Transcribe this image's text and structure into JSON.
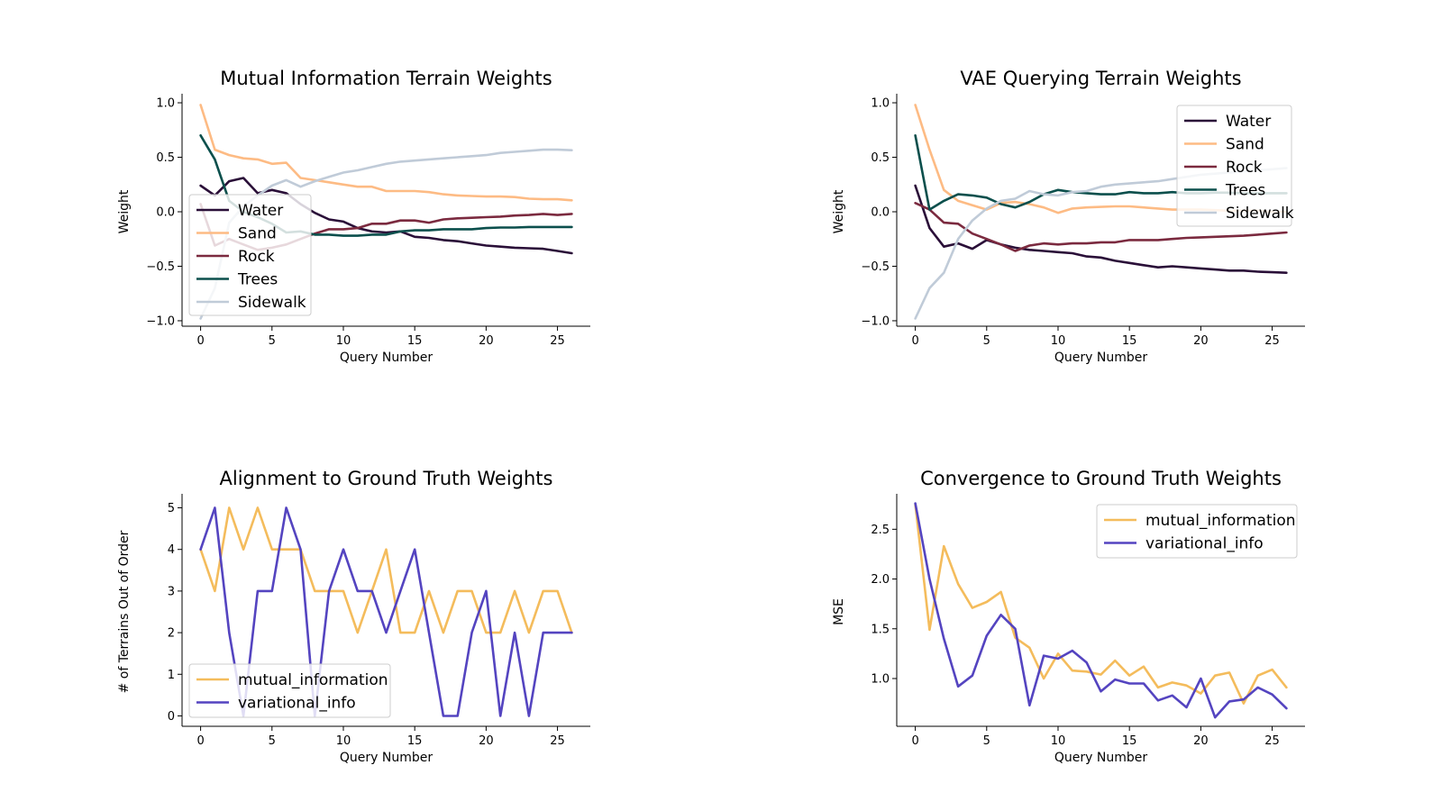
{
  "figure": {
    "panels": [
      "mi_weights",
      "vae_weights",
      "alignment",
      "convergence"
    ]
  },
  "chart_data": [
    {
      "id": "mi_weights",
      "type": "line",
      "title": "Mutual Information Terrain Weights",
      "xlabel": "Query Number",
      "ylabel": "Weight",
      "xlim": [
        -1.3,
        27.3
      ],
      "ylim": [
        -1.05,
        1.05
      ],
      "xticks": [
        0,
        5,
        10,
        15,
        20,
        25
      ],
      "yticks": [
        -1.0,
        -0.5,
        0.0,
        0.5,
        1.0
      ],
      "ytick_labels": [
        "−1.0",
        "−0.5",
        "0.0",
        "0.5",
        "1.0"
      ],
      "legend_position": "center-left",
      "grid": false,
      "x": [
        0,
        1,
        2,
        3,
        4,
        5,
        6,
        7,
        8,
        9,
        10,
        11,
        12,
        13,
        14,
        15,
        16,
        17,
        18,
        19,
        20,
        21,
        22,
        23,
        24,
        25,
        26
      ],
      "series": [
        {
          "name": "Water",
          "color": "#2a0f38",
          "values": [
            0.24,
            0.15,
            0.28,
            0.31,
            0.17,
            0.2,
            0.17,
            0.07,
            -0.01,
            -0.07,
            -0.09,
            -0.15,
            -0.18,
            -0.19,
            -0.18,
            -0.23,
            -0.24,
            -0.26,
            -0.27,
            -0.29,
            -0.31,
            -0.32,
            -0.33,
            -0.335,
            -0.34,
            -0.36,
            -0.38
          ]
        },
        {
          "name": "Sand",
          "color": "#fdbb84",
          "values": [
            0.98,
            0.57,
            0.52,
            0.49,
            0.48,
            0.44,
            0.45,
            0.31,
            0.29,
            0.27,
            0.25,
            0.23,
            0.23,
            0.19,
            0.19,
            0.19,
            0.18,
            0.16,
            0.15,
            0.145,
            0.14,
            0.14,
            0.135,
            0.12,
            0.115,
            0.115,
            0.105
          ]
        },
        {
          "name": "Rock",
          "color": "#7b2a3f",
          "values": [
            0.07,
            -0.31,
            -0.25,
            -0.3,
            -0.35,
            -0.33,
            -0.3,
            -0.25,
            -0.2,
            -0.16,
            -0.16,
            -0.15,
            -0.11,
            -0.11,
            -0.08,
            -0.08,
            -0.1,
            -0.07,
            -0.06,
            -0.055,
            -0.05,
            -0.045,
            -0.035,
            -0.03,
            -0.02,
            -0.03,
            -0.02
          ]
        },
        {
          "name": "Trees",
          "color": "#0b4f4c",
          "values": [
            0.7,
            0.48,
            0.1,
            0.0,
            -0.05,
            -0.11,
            -0.19,
            -0.18,
            -0.21,
            -0.21,
            -0.22,
            -0.22,
            -0.21,
            -0.21,
            -0.18,
            -0.17,
            -0.17,
            -0.16,
            -0.16,
            -0.16,
            -0.15,
            -0.145,
            -0.145,
            -0.14,
            -0.14,
            -0.14,
            -0.14
          ]
        },
        {
          "name": "Sidewalk",
          "color": "#c0cbd8",
          "values": [
            -0.98,
            -0.7,
            -0.1,
            0.05,
            0.15,
            0.24,
            0.29,
            0.23,
            0.28,
            0.32,
            0.36,
            0.38,
            0.41,
            0.44,
            0.46,
            0.47,
            0.48,
            0.49,
            0.5,
            0.51,
            0.52,
            0.54,
            0.55,
            0.56,
            0.57,
            0.57,
            0.565
          ]
        }
      ]
    },
    {
      "id": "vae_weights",
      "type": "line",
      "title": "VAE Querying Terrain Weights",
      "xlabel": "Query Number",
      "ylabel": "Weight",
      "xlim": [
        -1.3,
        27.3
      ],
      "ylim": [
        -1.05,
        1.05
      ],
      "xticks": [
        0,
        5,
        10,
        15,
        20,
        25
      ],
      "yticks": [
        -1.0,
        -0.5,
        0.0,
        0.5,
        1.0
      ],
      "ytick_labels": [
        "−1.0",
        "−0.5",
        "0.0",
        "0.5",
        "1.0"
      ],
      "legend_position": "upper-right",
      "grid": false,
      "x": [
        0,
        1,
        2,
        3,
        4,
        5,
        6,
        7,
        8,
        9,
        10,
        11,
        12,
        13,
        14,
        15,
        16,
        17,
        18,
        19,
        20,
        21,
        22,
        23,
        24,
        25,
        26
      ],
      "series": [
        {
          "name": "Water",
          "color": "#2a0f38",
          "values": [
            0.24,
            -0.15,
            -0.32,
            -0.29,
            -0.34,
            -0.26,
            -0.3,
            -0.33,
            -0.35,
            -0.36,
            -0.37,
            -0.38,
            -0.41,
            -0.42,
            -0.45,
            -0.47,
            -0.49,
            -0.51,
            -0.5,
            -0.51,
            -0.52,
            -0.53,
            -0.54,
            -0.54,
            -0.55,
            -0.555,
            -0.56
          ]
        },
        {
          "name": "Sand",
          "color": "#fdbb84",
          "values": [
            0.98,
            0.57,
            0.2,
            0.1,
            0.06,
            0.02,
            0.08,
            0.09,
            0.07,
            0.04,
            -0.01,
            0.03,
            0.04,
            0.045,
            0.05,
            0.05,
            0.04,
            0.03,
            0.02,
            0.02,
            0.02,
            0.015,
            0.01,
            0.01,
            0.01,
            0.0,
            0.0
          ]
        },
        {
          "name": "Rock",
          "color": "#7b2a3f",
          "values": [
            0.08,
            0.02,
            -0.1,
            -0.11,
            -0.2,
            -0.25,
            -0.3,
            -0.36,
            -0.31,
            -0.29,
            -0.3,
            -0.29,
            -0.29,
            -0.28,
            -0.28,
            -0.26,
            -0.26,
            -0.26,
            -0.25,
            -0.24,
            -0.235,
            -0.23,
            -0.225,
            -0.22,
            -0.21,
            -0.2,
            -0.19
          ]
        },
        {
          "name": "Trees",
          "color": "#0b4f4c",
          "values": [
            0.7,
            0.02,
            0.1,
            0.16,
            0.15,
            0.13,
            0.07,
            0.04,
            0.09,
            0.16,
            0.2,
            0.18,
            0.17,
            0.16,
            0.16,
            0.18,
            0.17,
            0.17,
            0.18,
            0.17,
            0.17,
            0.175,
            0.175,
            0.17,
            0.17,
            0.17,
            0.17
          ]
        },
        {
          "name": "Sidewalk",
          "color": "#c0cbd8",
          "values": [
            -0.98,
            -0.7,
            -0.56,
            -0.25,
            -0.08,
            0.03,
            0.1,
            0.12,
            0.19,
            0.16,
            0.15,
            0.18,
            0.19,
            0.23,
            0.25,
            0.26,
            0.27,
            0.28,
            0.3,
            0.32,
            0.34,
            0.35,
            0.36,
            0.37,
            0.38,
            0.39,
            0.4
          ]
        }
      ]
    },
    {
      "id": "alignment",
      "type": "line",
      "title": "Alignment to Ground Truth Weights",
      "xlabel": "Query Number",
      "ylabel": "# of Terrains Out of Order",
      "xlim": [
        -1.3,
        27.3
      ],
      "ylim": [
        -0.25,
        5.25
      ],
      "xticks": [
        0,
        5,
        10,
        15,
        20,
        25
      ],
      "yticks": [
        0,
        1,
        2,
        3,
        4,
        5
      ],
      "ytick_labels": [
        "0",
        "1",
        "2",
        "3",
        "4",
        "5"
      ],
      "legend_position": "lower-left",
      "grid": false,
      "x": [
        0,
        1,
        2,
        3,
        4,
        5,
        6,
        7,
        8,
        9,
        10,
        11,
        12,
        13,
        14,
        15,
        16,
        17,
        18,
        19,
        20,
        21,
        22,
        23,
        24,
        25,
        26
      ],
      "series": [
        {
          "name": "mutual_information",
          "color": "#f4bc5c",
          "values": [
            4,
            3,
            5,
            4,
            5,
            4,
            4,
            4,
            3,
            3,
            3,
            2,
            3,
            4,
            2,
            2,
            3,
            2,
            3,
            3,
            2,
            2,
            3,
            2,
            3,
            3,
            2
          ]
        },
        {
          "name": "variational_info",
          "color": "#5444c0",
          "values": [
            4,
            5,
            2,
            0,
            3,
            3,
            5,
            4,
            0,
            3,
            4,
            3,
            3,
            2,
            3,
            4,
            2,
            0,
            0,
            2,
            3,
            0,
            2,
            0,
            2,
            2,
            2
          ]
        }
      ]
    },
    {
      "id": "convergence",
      "type": "line",
      "title": "Convergence to Ground Truth Weights",
      "xlabel": "Query Number",
      "ylabel": "MSE",
      "xlim": [
        -1.3,
        27.3
      ],
      "ylim": [
        0.52,
        2.82
      ],
      "xticks": [
        0,
        5,
        10,
        15,
        20,
        25
      ],
      "yticks": [
        1.0,
        1.5,
        2.0,
        2.5
      ],
      "ytick_labels": [
        "1.0",
        "1.5",
        "2.0",
        "2.5"
      ],
      "legend_position": "upper-right",
      "grid": false,
      "x": [
        0,
        1,
        2,
        3,
        4,
        5,
        6,
        7,
        8,
        9,
        10,
        11,
        12,
        13,
        14,
        15,
        16,
        17,
        18,
        19,
        20,
        21,
        22,
        23,
        24,
        25,
        26
      ],
      "series": [
        {
          "name": "mutual_information",
          "color": "#f4bc5c",
          "values": [
            2.75,
            1.49,
            2.33,
            1.95,
            1.71,
            1.77,
            1.87,
            1.41,
            1.31,
            1.0,
            1.25,
            1.08,
            1.07,
            1.04,
            1.18,
            1.03,
            1.12,
            0.91,
            0.96,
            0.93,
            0.85,
            1.03,
            1.06,
            0.75,
            1.03,
            1.09,
            0.91
          ]
        },
        {
          "name": "variational_info",
          "color": "#5444c0",
          "values": [
            2.76,
            2.0,
            1.4,
            0.92,
            1.03,
            1.43,
            1.64,
            1.5,
            0.73,
            1.23,
            1.2,
            1.28,
            1.16,
            0.87,
            0.99,
            0.95,
            0.95,
            0.78,
            0.83,
            0.71,
            1.0,
            0.61,
            0.77,
            0.79,
            0.91,
            0.84,
            0.7
          ]
        }
      ]
    }
  ]
}
